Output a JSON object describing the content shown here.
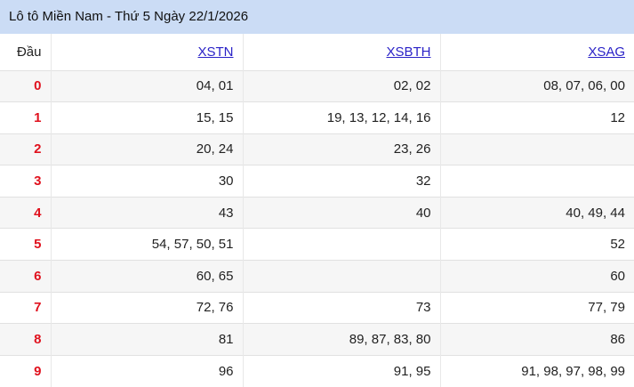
{
  "title": "Lô tô Miền Nam - Thứ 5 Ngày 22/1/2026",
  "table": {
    "corner_header": "Đầu",
    "columns": [
      {
        "label": "XSTN"
      },
      {
        "label": "XSBTH"
      },
      {
        "label": "XSAG"
      }
    ],
    "rows": [
      {
        "digit": "0",
        "cells": [
          "04, 01",
          "02, 02",
          "08, 07, 06, 00"
        ]
      },
      {
        "digit": "1",
        "cells": [
          "15, 15",
          "19, 13, 12, 14, 16",
          "12"
        ]
      },
      {
        "digit": "2",
        "cells": [
          "20, 24",
          "23, 26",
          ""
        ]
      },
      {
        "digit": "3",
        "cells": [
          "30",
          "32",
          ""
        ]
      },
      {
        "digit": "4",
        "cells": [
          "43",
          "40",
          "40, 49, 44"
        ]
      },
      {
        "digit": "5",
        "cells": [
          "54, 57, 50, 51",
          "",
          "52"
        ]
      },
      {
        "digit": "6",
        "cells": [
          "60, 65",
          "",
          "60"
        ]
      },
      {
        "digit": "7",
        "cells": [
          "72, 76",
          "73",
          "77, 79"
        ]
      },
      {
        "digit": "8",
        "cells": [
          "81",
          "89, 87, 83, 80",
          "86"
        ]
      },
      {
        "digit": "9",
        "cells": [
          "96",
          "91, 95",
          "91, 98, 97, 98, 99"
        ]
      }
    ]
  },
  "colors": {
    "header_bg": "#cbdcf5",
    "link": "#2a22c7",
    "digit": "#e0121e",
    "row_alt_bg": "#f6f6f6",
    "border_v": "#e8e8e8",
    "border_h": "#e1e1e1"
  }
}
